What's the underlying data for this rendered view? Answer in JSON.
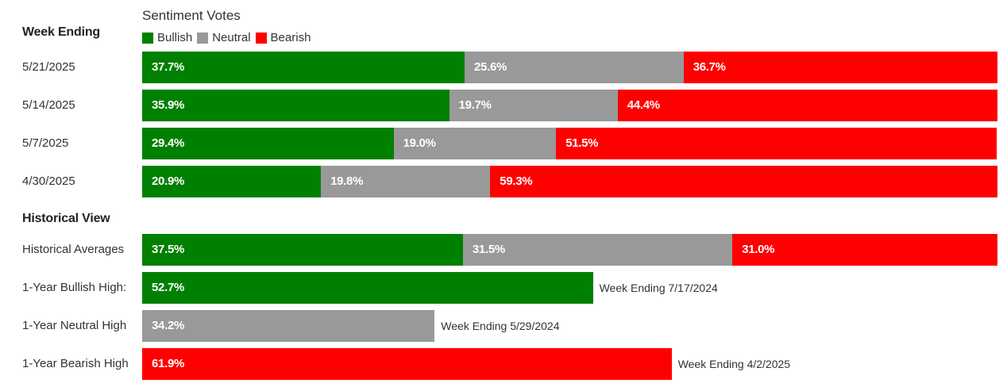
{
  "legend": {
    "title": "Sentiment Votes",
    "items": [
      {
        "label": "Bullish",
        "color": "#008000"
      },
      {
        "label": "Neutral",
        "color": "#999999"
      },
      {
        "label": "Bearish",
        "color": "#ff0000"
      }
    ]
  },
  "sections": {
    "week_ending": "Week Ending",
    "historical": "Historical View"
  },
  "chart_data": [
    {
      "type": "bar",
      "stacked": true,
      "orientation": "horizontal",
      "categories": [
        "5/21/2025",
        "5/14/2025",
        "5/7/2025",
        "4/30/2025"
      ],
      "series": [
        {
          "name": "Bullish",
          "values": [
            37.7,
            35.9,
            29.4,
            20.9
          ],
          "labels": [
            "37.7%",
            "35.9%",
            "29.4%",
            "20.9%"
          ],
          "color": "#008000"
        },
        {
          "name": "Neutral",
          "values": [
            25.6,
            19.7,
            19.0,
            19.8
          ],
          "labels": [
            "25.6%",
            "19.7%",
            "19.0%",
            "19.8%"
          ],
          "color": "#999999"
        },
        {
          "name": "Bearish",
          "values": [
            36.7,
            44.4,
            51.5,
            59.3
          ],
          "labels": [
            "36.7%",
            "44.4%",
            "51.5%",
            "59.3%"
          ],
          "color": "#ff0000"
        }
      ],
      "ylabel": "Week Ending",
      "xlim": [
        0,
        100
      ]
    },
    {
      "type": "bar",
      "stacked": true,
      "orientation": "horizontal",
      "categories": [
        "Historical Averages"
      ],
      "series": [
        {
          "name": "Bullish",
          "values": [
            37.5
          ],
          "labels": [
            "37.5%"
          ],
          "color": "#008000"
        },
        {
          "name": "Neutral",
          "values": [
            31.5
          ],
          "labels": [
            "31.5%"
          ],
          "color": "#999999"
        },
        {
          "name": "Bearish",
          "values": [
            31.0
          ],
          "labels": [
            "31.0%"
          ],
          "color": "#ff0000"
        }
      ],
      "xlim": [
        0,
        100
      ]
    },
    {
      "type": "bar",
      "orientation": "horizontal",
      "categories": [
        "1-Year Bullish High:",
        "1-Year Neutral High",
        "1-Year Bearish High"
      ],
      "values": [
        52.7,
        34.2,
        61.9
      ],
      "labels": [
        "52.7%",
        "34.2%",
        "61.9%"
      ],
      "colors": [
        "#008000",
        "#999999",
        "#ff0000"
      ],
      "notes": [
        "Week Ending 7/17/2024",
        "Week Ending 5/29/2024",
        "Week Ending 4/2/2025"
      ],
      "xlim": [
        0,
        100
      ]
    }
  ]
}
